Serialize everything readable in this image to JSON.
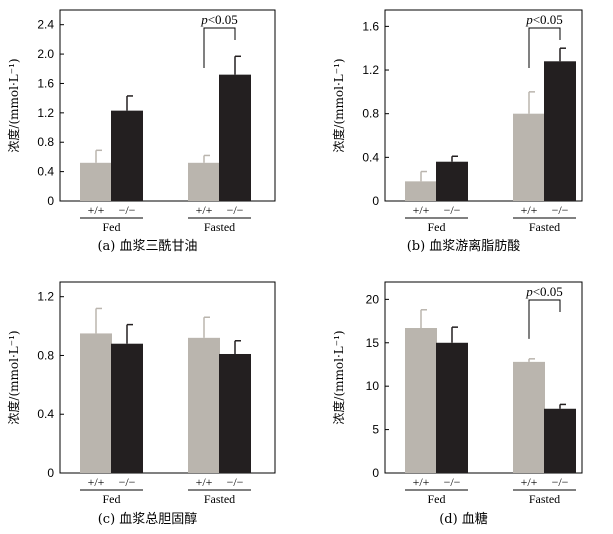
{
  "colors": {
    "wild_type": "#bab5ae",
    "knockout": "#231f20"
  },
  "chart_data": [
    {
      "type": "bar",
      "title": "",
      "caption": "(a) 血浆三酰甘油",
      "ylabel": "浓度/(mmol·L⁻¹)",
      "ylim": [
        0,
        2.6
      ],
      "yticks": [
        0,
        0.4,
        0.8,
        1.2,
        1.6,
        2.0,
        2.4
      ],
      "ytick_labels": [
        "0",
        "0.4",
        "0.8",
        "1.2",
        "1.6",
        "2.0",
        "2.4"
      ],
      "groups": [
        "Fed",
        "Fasted"
      ],
      "genotypes": [
        "+/+",
        "−/−"
      ],
      "series": [
        {
          "values": [
            0.52,
            0.52
          ],
          "errors": [
            0.17,
            0.1
          ]
        },
        {
          "values": [
            1.23,
            1.72
          ],
          "errors": [
            0.2,
            0.25
          ]
        }
      ],
      "annotation": {
        "group": 1,
        "text": "p<0.05",
        "p": "p",
        "rest": "<0.05"
      }
    },
    {
      "type": "bar",
      "title": "",
      "caption": "(b) 血浆游离脂肪酸",
      "ylabel": "浓度/(mmol·L⁻¹)",
      "ylim": [
        0,
        1.75
      ],
      "yticks": [
        0,
        0.4,
        0.8,
        1.2,
        1.6
      ],
      "ytick_labels": [
        "0",
        "0.4",
        "0.8",
        "1.2",
        "1.6"
      ],
      "groups": [
        "Fed",
        "Fasted"
      ],
      "genotypes": [
        "+/+",
        "−/−"
      ],
      "series": [
        {
          "values": [
            0.18,
            0.8
          ],
          "errors": [
            0.09,
            0.2
          ]
        },
        {
          "values": [
            0.36,
            1.28
          ],
          "errors": [
            0.05,
            0.12
          ]
        }
      ],
      "annotation": {
        "group": 1,
        "text": "p<0.05",
        "p": "p",
        "rest": "<0.05"
      }
    },
    {
      "type": "bar",
      "title": "",
      "caption": "(c) 血浆总胆固醇",
      "ylabel": "浓度/(mmol·L⁻¹)",
      "ylim": [
        0,
        1.3
      ],
      "yticks": [
        0,
        0.4,
        0.8,
        1.2
      ],
      "ytick_labels": [
        "0",
        "0.4",
        "0.8",
        "1.2"
      ],
      "groups": [
        "Fed",
        "Fasted"
      ],
      "genotypes": [
        "+/+",
        "−/−"
      ],
      "series": [
        {
          "values": [
            0.95,
            0.92
          ],
          "errors": [
            0.17,
            0.14
          ]
        },
        {
          "values": [
            0.88,
            0.81
          ],
          "errors": [
            0.13,
            0.09
          ]
        }
      ],
      "annotation": null
    },
    {
      "type": "bar",
      "title": "",
      "caption": "(d) 血糖",
      "ylabel": "浓度/(mmol·L⁻¹)",
      "ylim": [
        0,
        22
      ],
      "yticks": [
        0,
        5,
        10,
        15,
        20
      ],
      "ytick_labels": [
        "0",
        "5",
        "10",
        "15",
        "20"
      ],
      "groups": [
        "Fed",
        "Fasted"
      ],
      "genotypes": [
        "+/+",
        "−/−"
      ],
      "series": [
        {
          "values": [
            16.7,
            12.8
          ],
          "errors": [
            2.1,
            0.35
          ]
        },
        {
          "values": [
            15.0,
            7.4
          ],
          "errors": [
            1.8,
            0.5
          ]
        }
      ],
      "annotation": {
        "group": 1,
        "text": "p<0.05",
        "p": "p",
        "rest": "<0.05"
      }
    }
  ]
}
